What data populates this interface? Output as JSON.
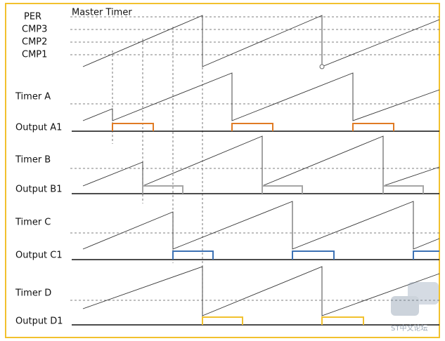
{
  "master": {
    "title": "Master Timer",
    "per": "PER",
    "cmp3": "CMP3",
    "cmp2": "CMP2",
    "cmp1": "CMP1"
  },
  "timers": [
    {
      "name": "Timer A",
      "output": "Output A1"
    },
    {
      "name": "Timer B",
      "output": "Output B1"
    },
    {
      "name": "Timer C",
      "output": "Output C1"
    },
    {
      "name": "Timer D",
      "output": "Output D1"
    }
  ],
  "watermark": "ST中文论坛"
}
